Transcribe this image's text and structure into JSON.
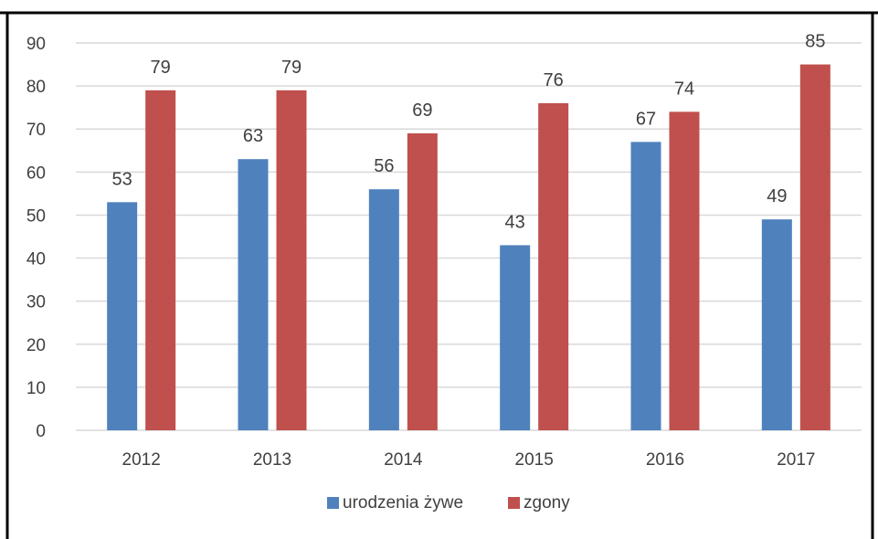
{
  "chart_data": {
    "type": "bar",
    "title": "",
    "xlabel": "",
    "ylabel": "",
    "categories": [
      "2012",
      "2013",
      "2014",
      "2015",
      "2016",
      "2017"
    ],
    "series": [
      {
        "name": "urodzenia żywe",
        "color": "#4f81bd",
        "values": [
          53,
          63,
          56,
          43,
          67,
          49
        ]
      },
      {
        "name": "zgony",
        "color": "#c0504d",
        "values": [
          79,
          79,
          69,
          76,
          74,
          85
        ]
      }
    ],
    "ylim": [
      0,
      90
    ],
    "yticks": [
      0,
      10,
      20,
      30,
      40,
      50,
      60,
      70,
      80,
      90
    ],
    "grid": true,
    "gridColor": "#d9d9d9",
    "data_labels": true,
    "legend": {
      "position": "bottom"
    }
  }
}
